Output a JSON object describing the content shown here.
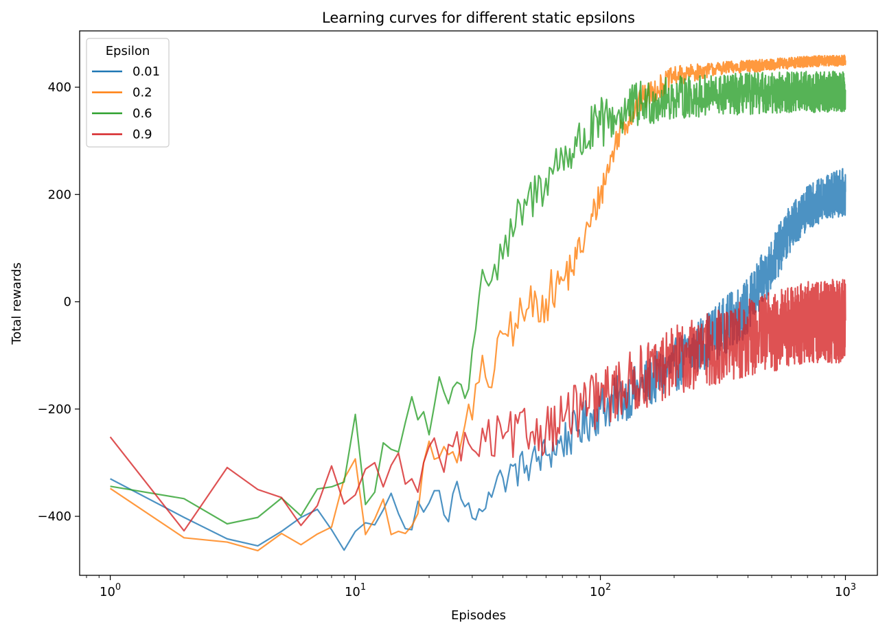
{
  "chart_data": {
    "type": "line",
    "title": "Learning curves for different static epsilons",
    "xlabel": "Episodes",
    "ylabel": "Total rewards",
    "xscale": "log",
    "xlim": [
      0.75,
      1350
    ],
    "ylim": [
      -510,
      505
    ],
    "x_ticks": [
      {
        "value": 1,
        "base": "10",
        "exp": "0"
      },
      {
        "value": 10,
        "base": "10",
        "exp": "1"
      },
      {
        "value": 100,
        "base": "10",
        "exp": "2"
      },
      {
        "value": 1000,
        "base": "10",
        "exp": "3"
      }
    ],
    "y_ticks": [
      {
        "value": -400,
        "label": "−400"
      },
      {
        "value": -200,
        "label": "−200"
      },
      {
        "value": 0,
        "label": "0"
      },
      {
        "value": 200,
        "label": "200"
      },
      {
        "value": 400,
        "label": "400"
      }
    ],
    "legend": {
      "title": "Epsilon",
      "position": "upper-left"
    },
    "episodes_total": 1000,
    "series": [
      {
        "name": "0.01",
        "color": "#1f77b4",
        "points": [
          [
            1,
            -330
          ],
          [
            2,
            -402
          ],
          [
            3,
            -442
          ],
          [
            4,
            -455
          ],
          [
            5,
            -428
          ],
          [
            6,
            -402
          ],
          [
            7,
            -387
          ],
          [
            8,
            -425
          ],
          [
            9,
            -463
          ],
          [
            10,
            -428
          ],
          [
            11,
            -412
          ],
          [
            12,
            -416
          ],
          [
            13,
            -388
          ],
          [
            14,
            -357
          ],
          [
            15,
            -395
          ],
          [
            16,
            -423
          ],
          [
            17,
            -425
          ],
          [
            18,
            -372
          ],
          [
            19,
            -392
          ],
          [
            20,
            -375
          ],
          [
            22,
            -352
          ],
          [
            24,
            -410
          ],
          [
            26,
            -335
          ],
          [
            28,
            -382
          ],
          [
            30,
            -403
          ],
          [
            32,
            -386
          ],
          [
            35,
            -355
          ],
          [
            40,
            -328
          ],
          [
            50,
            -305
          ],
          [
            60,
            -285
          ],
          [
            80,
            -240
          ],
          [
            100,
            -200
          ],
          [
            150,
            -158
          ],
          [
            200,
            -120
          ],
          [
            300,
            -55
          ],
          [
            400,
            -10
          ],
          [
            500,
            70
          ],
          [
            600,
            140
          ],
          [
            700,
            175
          ],
          [
            800,
            190
          ],
          [
            900,
            200
          ],
          [
            1000,
            205
          ]
        ],
        "noise": [
          [
            1,
            0
          ],
          [
            20,
            25
          ],
          [
            50,
            35
          ],
          [
            100,
            45
          ],
          [
            200,
            50
          ],
          [
            400,
            55
          ],
          [
            700,
            40
          ],
          [
            1000,
            45
          ]
        ]
      },
      {
        "name": "0.2",
        "color": "#ff7f0e",
        "points": [
          [
            1,
            -348
          ],
          [
            2,
            -440
          ],
          [
            3,
            -448
          ],
          [
            4,
            -464
          ],
          [
            5,
            -432
          ],
          [
            6,
            -453
          ],
          [
            7,
            -433
          ],
          [
            8,
            -420
          ],
          [
            9,
            -330
          ],
          [
            10,
            -293
          ],
          [
            11,
            -434
          ],
          [
            12,
            -405
          ],
          [
            13,
            -368
          ],
          [
            14,
            -434
          ],
          [
            15,
            -428
          ],
          [
            16,
            -432
          ],
          [
            17,
            -418
          ],
          [
            18,
            -395
          ],
          [
            19,
            -300
          ],
          [
            20,
            -260
          ],
          [
            22,
            -290
          ],
          [
            24,
            -285
          ],
          [
            26,
            -300
          ],
          [
            28,
            -230
          ],
          [
            30,
            -220
          ],
          [
            33,
            -100
          ],
          [
            36,
            -160
          ],
          [
            40,
            -60
          ],
          [
            45,
            -40
          ],
          [
            50,
            -15
          ],
          [
            60,
            5
          ],
          [
            70,
            40
          ],
          [
            80,
            80
          ],
          [
            90,
            140
          ],
          [
            100,
            200
          ],
          [
            120,
            320
          ],
          [
            150,
            380
          ],
          [
            200,
            420
          ],
          [
            300,
            435
          ],
          [
            500,
            442
          ],
          [
            700,
            448
          ],
          [
            1000,
            450
          ]
        ],
        "noise": [
          [
            1,
            0
          ],
          [
            20,
            20
          ],
          [
            30,
            40
          ],
          [
            60,
            45
          ],
          [
            100,
            30
          ],
          [
            150,
            25
          ],
          [
            300,
            12
          ],
          [
            1000,
            10
          ]
        ]
      },
      {
        "name": "0.6",
        "color": "#2ca02c",
        "points": [
          [
            1,
            -344
          ],
          [
            2,
            -367
          ],
          [
            3,
            -414
          ],
          [
            4,
            -402
          ],
          [
            5,
            -366
          ],
          [
            6,
            -399
          ],
          [
            7,
            -349
          ],
          [
            8,
            -345
          ],
          [
            9,
            -336
          ],
          [
            10,
            -210
          ],
          [
            11,
            -378
          ],
          [
            12,
            -355
          ],
          [
            13,
            -263
          ],
          [
            14,
            -275
          ],
          [
            15,
            -280
          ],
          [
            16,
            -225
          ],
          [
            17,
            -177
          ],
          [
            18,
            -220
          ],
          [
            19,
            -205
          ],
          [
            20,
            -248
          ],
          [
            22,
            -140
          ],
          [
            24,
            -190
          ],
          [
            26,
            -150
          ],
          [
            28,
            -180
          ],
          [
            30,
            -90
          ],
          [
            33,
            60
          ],
          [
            36,
            40
          ],
          [
            40,
            80
          ],
          [
            45,
            140
          ],
          [
            50,
            180
          ],
          [
            60,
            230
          ],
          [
            70,
            270
          ],
          [
            80,
            290
          ],
          [
            100,
            330
          ],
          [
            120,
            350
          ],
          [
            150,
            370
          ],
          [
            200,
            380
          ],
          [
            300,
            385
          ],
          [
            500,
            390
          ],
          [
            1000,
            392
          ]
        ],
        "noise": [
          [
            1,
            0
          ],
          [
            20,
            20
          ],
          [
            40,
            45
          ],
          [
            100,
            50
          ],
          [
            200,
            40
          ],
          [
            1000,
            38
          ]
        ]
      },
      {
        "name": "0.9",
        "color": "#d62728",
        "points": [
          [
            1,
            -252
          ],
          [
            2,
            -427
          ],
          [
            3,
            -309
          ],
          [
            4,
            -350
          ],
          [
            5,
            -365
          ],
          [
            6,
            -417
          ],
          [
            7,
            -380
          ],
          [
            8,
            -306
          ],
          [
            9,
            -377
          ],
          [
            10,
            -360
          ],
          [
            11,
            -312
          ],
          [
            12,
            -300
          ],
          [
            13,
            -345
          ],
          [
            14,
            -305
          ],
          [
            15,
            -282
          ],
          [
            16,
            -340
          ],
          [
            17,
            -330
          ],
          [
            18,
            -355
          ],
          [
            19,
            -300
          ],
          [
            20,
            -270
          ],
          [
            22,
            -290
          ],
          [
            25,
            -270
          ],
          [
            30,
            -275
          ],
          [
            40,
            -255
          ],
          [
            60,
            -235
          ],
          [
            100,
            -180
          ],
          [
            200,
            -110
          ],
          [
            300,
            -85
          ],
          [
            500,
            -55
          ],
          [
            700,
            -40
          ],
          [
            1000,
            -35
          ]
        ],
        "noise": [
          [
            1,
            0
          ],
          [
            15,
            30
          ],
          [
            30,
            45
          ],
          [
            60,
            50
          ],
          [
            100,
            55
          ],
          [
            200,
            65
          ],
          [
            500,
            75
          ],
          [
            1000,
            80
          ]
        ]
      }
    ]
  }
}
